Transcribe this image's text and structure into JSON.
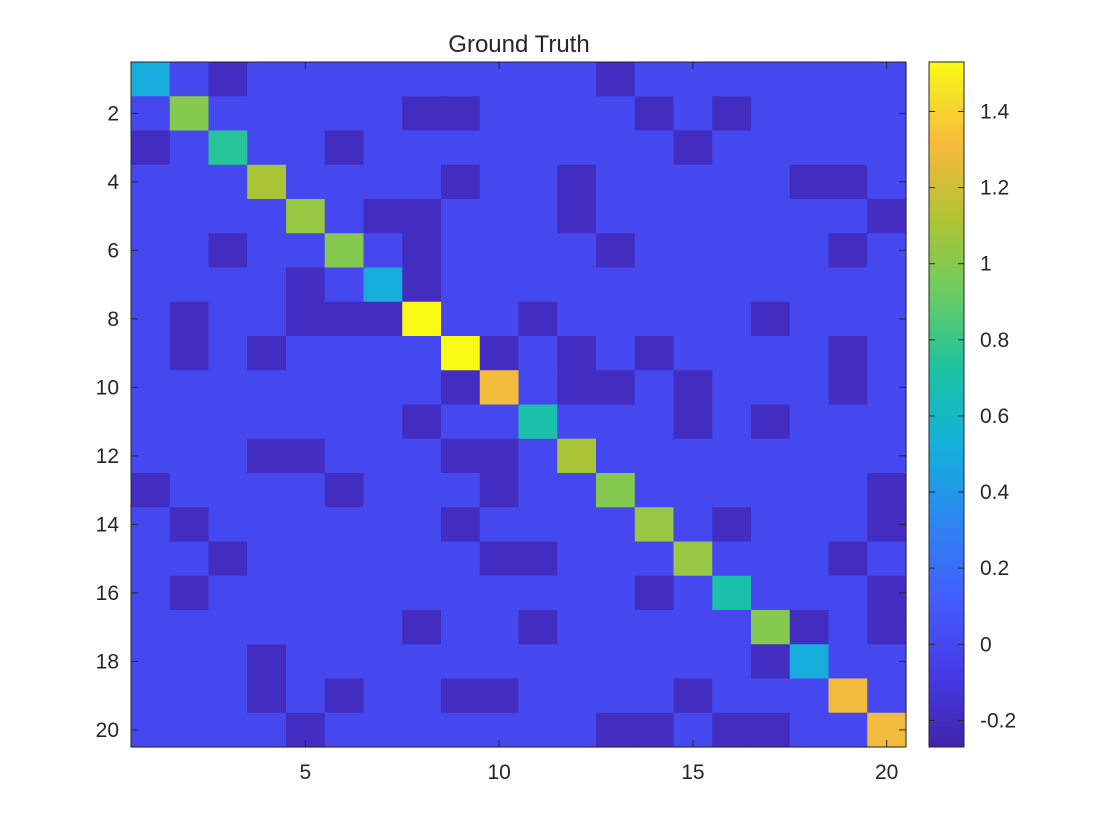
{
  "chart_data": {
    "type": "heatmap",
    "title": "Ground Truth",
    "xlabel": "",
    "ylabel": "",
    "rows": 20,
    "cols": 20,
    "x_ticks": [
      5,
      10,
      15,
      20
    ],
    "y_ticks": [
      2,
      4,
      6,
      8,
      10,
      12,
      14,
      16,
      18,
      20
    ],
    "colorbar": {
      "range": [
        -0.27,
        1.53
      ],
      "ticks": [
        -0.2,
        0,
        0.2,
        0.4,
        0.6,
        0.8,
        1,
        1.2,
        1.4
      ],
      "tick_labels": [
        "-0.2",
        "0",
        "0.2",
        "0.4",
        "0.6",
        "0.8",
        "1",
        "1.2",
        "1.4"
      ],
      "colormap": "parula"
    },
    "values": [
      [
        0.5,
        0,
        -0.2,
        0,
        0,
        0,
        0,
        0,
        0,
        0,
        0,
        0,
        -0.2,
        0,
        0,
        0,
        0,
        0,
        0,
        0
      ],
      [
        0,
        1.0,
        0,
        0,
        0,
        0,
        0,
        -0.2,
        -0.2,
        0,
        0,
        0,
        0,
        -0.2,
        0,
        -0.2,
        0,
        0,
        0,
        0
      ],
      [
        -0.2,
        0,
        0.75,
        0,
        0,
        -0.2,
        0,
        0,
        0,
        0,
        0,
        0,
        0,
        0,
        -0.2,
        0,
        0,
        0,
        0,
        0
      ],
      [
        0,
        0,
        0,
        1.1,
        0,
        0,
        0,
        0,
        -0.2,
        0,
        0,
        -0.2,
        0,
        0,
        0,
        0,
        0,
        -0.2,
        -0.2,
        0
      ],
      [
        0,
        0,
        0,
        0,
        1.05,
        0,
        -0.2,
        -0.2,
        0,
        0,
        0,
        -0.2,
        0,
        0,
        0,
        0,
        0,
        0,
        0,
        -0.2
      ],
      [
        0,
        0,
        -0.2,
        0,
        0,
        1.0,
        0,
        -0.2,
        0,
        0,
        0,
        0,
        -0.2,
        0,
        0,
        0,
        0,
        0,
        -0.2,
        0
      ],
      [
        0,
        0,
        0,
        0,
        -0.2,
        0,
        0.5,
        -0.2,
        0,
        0,
        0,
        0,
        0,
        0,
        0,
        0,
        0,
        0,
        0,
        0
      ],
      [
        0,
        -0.2,
        0,
        0,
        -0.2,
        -0.2,
        -0.2,
        1.53,
        0,
        0,
        -0.2,
        0,
        0,
        0,
        0,
        0,
        -0.2,
        0,
        0,
        0
      ],
      [
        0,
        -0.2,
        0,
        -0.2,
        0,
        0,
        0,
        0,
        1.53,
        -0.2,
        0,
        -0.2,
        0,
        -0.2,
        0,
        0,
        0,
        0,
        -0.2,
        0
      ],
      [
        0,
        0,
        0,
        0,
        0,
        0,
        0,
        0,
        -0.2,
        1.3,
        0,
        -0.2,
        -0.2,
        0,
        -0.2,
        0,
        0,
        0,
        -0.2,
        0
      ],
      [
        0,
        0,
        0,
        0,
        0,
        0,
        0,
        -0.2,
        0,
        0,
        0.7,
        0,
        0,
        0,
        -0.2,
        0,
        -0.2,
        0,
        0,
        0
      ],
      [
        0,
        0,
        0,
        -0.2,
        -0.2,
        0,
        0,
        0,
        -0.2,
        -0.2,
        0,
        1.1,
        0,
        0,
        0,
        0,
        0,
        0,
        0,
        0
      ],
      [
        -0.2,
        0,
        0,
        0,
        0,
        -0.2,
        0,
        0,
        0,
        -0.2,
        0,
        0,
        1.0,
        0,
        0,
        0,
        0,
        0,
        0,
        -0.2
      ],
      [
        0,
        -0.2,
        0,
        0,
        0,
        0,
        0,
        0,
        -0.2,
        0,
        0,
        0,
        0,
        1.05,
        0,
        -0.2,
        0,
        0,
        0,
        -0.2
      ],
      [
        0,
        0,
        -0.2,
        0,
        0,
        0,
        0,
        0,
        0,
        -0.2,
        -0.2,
        0,
        0,
        0,
        1.05,
        0,
        0,
        0,
        -0.2,
        0
      ],
      [
        0,
        -0.2,
        0,
        0,
        0,
        0,
        0,
        0,
        0,
        0,
        0,
        0,
        0,
        -0.2,
        0,
        0.7,
        0,
        0,
        0,
        -0.2
      ],
      [
        0,
        0,
        0,
        0,
        0,
        0,
        0,
        -0.2,
        0,
        0,
        -0.2,
        0,
        0,
        0,
        0,
        0,
        1.0,
        -0.2,
        0,
        -0.2
      ],
      [
        0,
        0,
        0,
        -0.2,
        0,
        0,
        0,
        0,
        0,
        0,
        0,
        0,
        0,
        0,
        0,
        0,
        -0.2,
        0.5,
        0,
        0
      ],
      [
        0,
        0,
        0,
        -0.2,
        0,
        -0.2,
        0,
        0,
        -0.2,
        -0.2,
        0,
        0,
        0,
        0,
        -0.2,
        0,
        0,
        0,
        1.3,
        0
      ],
      [
        0,
        0,
        0,
        0,
        -0.2,
        0,
        0,
        0,
        0,
        0,
        0,
        0,
        -0.2,
        -0.2,
        0,
        -0.2,
        -0.2,
        0,
        0,
        1.3
      ]
    ]
  }
}
